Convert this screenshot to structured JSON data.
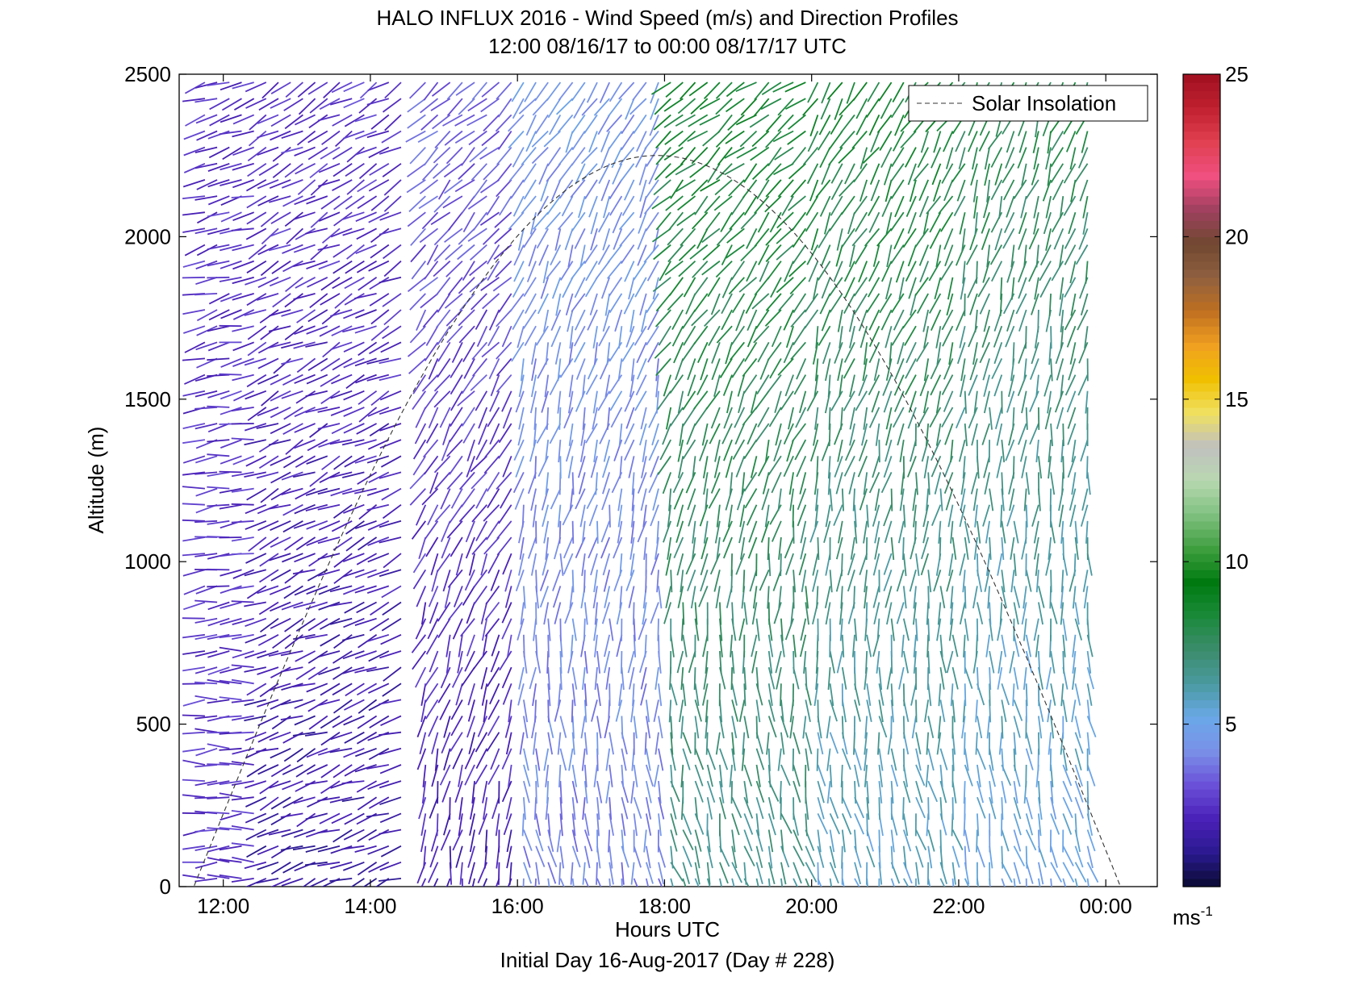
{
  "chart_data": {
    "type": "barb-profile",
    "title": "HALO INFLUX 2016 - Wind Speed (m/s) and Direction Profiles",
    "subtitle": "12:00 08/16/17 to 00:00 08/17/17  UTC",
    "xlabel": "Hours UTC",
    "ylabel": "Altitude (m)",
    "footer": "Initial Day 16-Aug-2017 (Day # 228)",
    "xlim": [
      11.4,
      24.7
    ],
    "ylim": [
      0,
      2500
    ],
    "xticks": [
      {
        "value": 12,
        "label": "12:00"
      },
      {
        "value": 14,
        "label": "14:00"
      },
      {
        "value": 16,
        "label": "16:00"
      },
      {
        "value": 18,
        "label": "18:00"
      },
      {
        "value": 20,
        "label": "20:00"
      },
      {
        "value": 22,
        "label": "22:00"
      },
      {
        "value": 24,
        "label": "00:00"
      }
    ],
    "yticks": [
      0,
      500,
      1000,
      1500,
      2000,
      2500
    ],
    "legend": {
      "label": "Solar Insolation",
      "position": "top-right"
    },
    "solar_insolation": {
      "peak_time": 17.9,
      "peak_altitude": 2250,
      "half_width_hours": 6.3
    },
    "colorbar": {
      "min": 0,
      "max": 25,
      "ticks": [
        5,
        10,
        15,
        20,
        25
      ],
      "unit": "ms",
      "unit_superscript": "-1"
    },
    "wind_profiles": {
      "time_start": 11.75,
      "time_end": 23.85,
      "interval_hours": 0.1667,
      "altitude_step_m": 50,
      "segments": [
        {
          "t0": 11.75,
          "t1": 12.5,
          "speed_low": 2.5,
          "speed_high": 2.5,
          "dir_low": 270,
          "dir_high": 250
        },
        {
          "t0": 12.5,
          "t1": 14.5,
          "speed_low": 1.5,
          "speed_high": 2.7,
          "dir_low": 250,
          "dir_high": 240
        },
        {
          "t0": 14.7,
          "t1": 16.0,
          "speed_low": 2.0,
          "speed_high": 3.5,
          "dir_low": 190,
          "dir_high": 230
        },
        {
          "t0": 16.0,
          "t1": 18.0,
          "speed_low": 4.0,
          "speed_high": 4.5,
          "dir_low": 170,
          "dir_high": 215
        },
        {
          "t0": 18.0,
          "t1": 20.0,
          "speed_low": 6.5,
          "speed_high": 8.5,
          "dir_low": 160,
          "dir_high": 235
        },
        {
          "t0": 20.0,
          "t1": 22.0,
          "speed_low": 5.5,
          "speed_high": 8.5,
          "dir_low": 165,
          "dir_high": 215
        },
        {
          "t0": 22.0,
          "t1": 23.85,
          "speed_low": 5.0,
          "speed_high": 8.0,
          "dir_low": 165,
          "dir_high": 205
        }
      ]
    }
  },
  "colors": {
    "solar_line": "#333333",
    "axes": "#000000",
    "colormap": [
      "#0a0a30",
      "#2a1a90",
      "#4a20b8",
      "#6a50d8",
      "#7a90e8",
      "#6aa8e8",
      "#4a9aa0",
      "#3c8c6c",
      "#1a8a3a",
      "#007a10",
      "#40a040",
      "#80c080",
      "#b8d8b0",
      "#c0c0c0",
      "#f0e060",
      "#f0c000",
      "#f0a020",
      "#c07020",
      "#906040",
      "#704830",
      "#a04060",
      "#f05080",
      "#e04050",
      "#c02030",
      "#a01020"
    ]
  }
}
